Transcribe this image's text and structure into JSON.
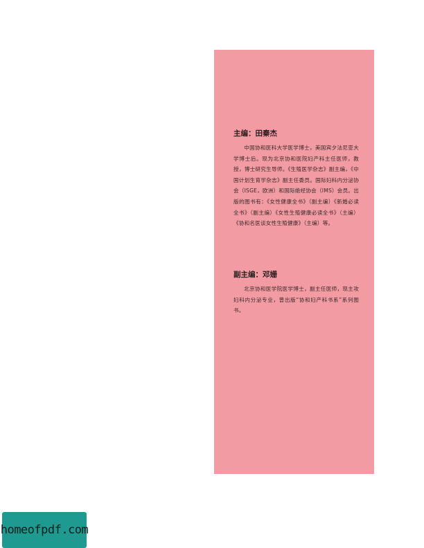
{
  "editor": {
    "title": "主编：田秦杰",
    "bio": "中国协和医科大学医学博士，美国宾夕法尼亚大学博士后。现为北京协和医院妇产科主任医师，教授，博士研究生导师。《生殖医学杂志》副主编，《中国计划生育学杂志》副主任委员。国际妇科内分泌协会（ISGE，欧洲）和国际绝经协会（IMS）会员。出版的图书有：《女性健康全书》（副主编）《新婚必读全书》（副主编）《女性生殖健康必读全书》（主编）《协和名医谈女性生殖健康》（主编）等。"
  },
  "deputy": {
    "title": "副主编：邓姗",
    "bio": "北京协和医学院医学博士，副主任医师，现主攻妇科内分泌专业，曾出版“协和妇产科书系”系列图书。"
  },
  "watermark": {
    "text": "homeofpdf.com"
  },
  "colors": {
    "panel": "#f29ba2",
    "watermark_bg": "#1f9a91"
  }
}
